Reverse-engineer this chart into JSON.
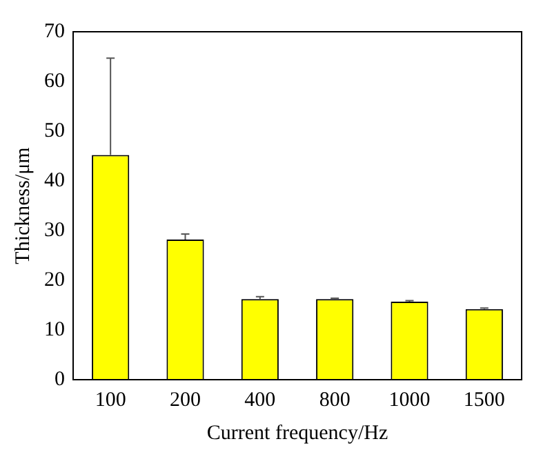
{
  "chart_data": {
    "type": "bar",
    "xlabel": "Current frequency/Hz",
    "ylabel": "Thickness/μm",
    "categories": [
      "100",
      "200",
      "400",
      "800",
      "1000",
      "1500"
    ],
    "values": [
      45.2,
      28.2,
      16.2,
      16.2,
      15.7,
      14.2
    ],
    "errors": [
      [
        45.2,
        64.7
      ],
      [
        28.2,
        29.3
      ],
      [
        16.2,
        16.7
      ],
      [
        16.2,
        16.4
      ],
      [
        15.7,
        15.9
      ],
      [
        14.2,
        14.4
      ]
    ],
    "color": "#ffff00",
    "ylim": [
      0,
      70
    ],
    "yticks": [
      0,
      10,
      20,
      30,
      40,
      50,
      60,
      70
    ],
    "grid": false,
    "legend": false
  }
}
